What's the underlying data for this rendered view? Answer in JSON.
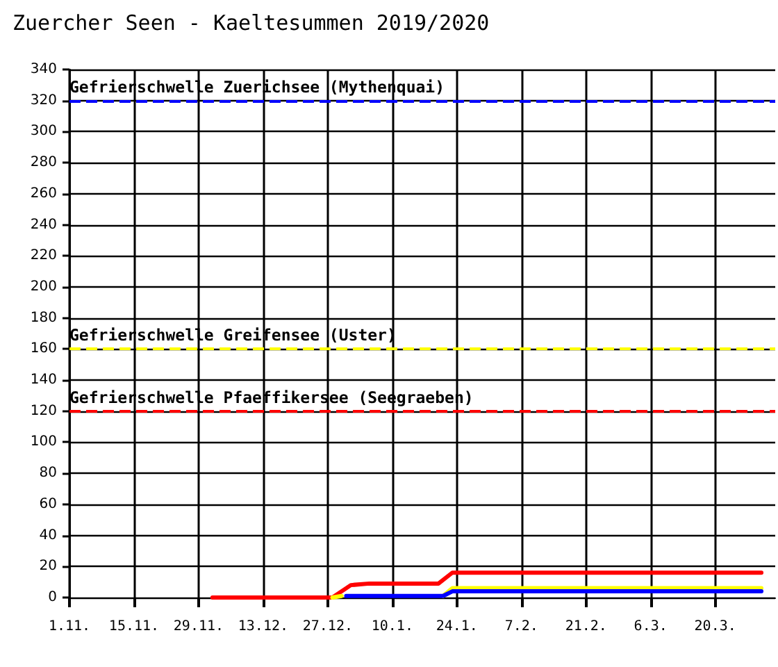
{
  "chart_data": {
    "type": "line",
    "title": "Zuercher Seen - Kaeltesummen 2019/2020",
    "xlim": [
      "2019-11-01",
      "2020-04-02"
    ],
    "xticks": [
      {
        "value": "2019-11-01",
        "label": "1.11."
      },
      {
        "value": "2019-11-15",
        "label": "15.11."
      },
      {
        "value": "2019-11-29",
        "label": "29.11."
      },
      {
        "value": "2019-12-13",
        "label": "13.12."
      },
      {
        "value": "2019-12-27",
        "label": "27.12."
      },
      {
        "value": "2020-01-10",
        "label": "10.1."
      },
      {
        "value": "2020-01-24",
        "label": "24.1."
      },
      {
        "value": "2020-02-07",
        "label": "7.2."
      },
      {
        "value": "2020-02-21",
        "label": "21.2."
      },
      {
        "value": "2020-03-06",
        "label": "6.3."
      },
      {
        "value": "2020-03-20",
        "label": "20.3."
      }
    ],
    "ylim": [
      0,
      340
    ],
    "yticks": [
      0,
      20,
      40,
      60,
      80,
      100,
      120,
      140,
      160,
      180,
      200,
      220,
      240,
      260,
      280,
      300,
      320,
      340
    ],
    "grid": true,
    "marker": "none",
    "line_style": "solid",
    "series": [
      {
        "color": "#ff0000",
        "x": [
          "2019-12-02",
          "2019-12-28",
          "2020-01-01",
          "2020-01-05",
          "2020-01-20",
          "2020-01-23",
          "2020-03-30"
        ],
        "values": [
          0,
          0,
          8,
          9,
          9,
          16,
          16
        ]
      },
      {
        "color": "#ffff00",
        "x": [
          "2019-12-28",
          "2019-12-30",
          "2020-01-10",
          "2020-01-21",
          "2020-01-23",
          "2020-03-30"
        ],
        "values": [
          0,
          1,
          null,
          1,
          6,
          6
        ]
      },
      {
        "color": "#0000ff",
        "x": [
          "2019-12-31",
          "2020-01-21",
          "2020-01-23",
          "2020-03-30"
        ],
        "values": [
          1,
          1,
          4,
          4
        ]
      }
    ],
    "ref_lines": [
      {
        "axis": "y",
        "value": 320,
        "label": "Gefrierschwelle Zuerichsee (Mythenquai)",
        "color": "#0000ff",
        "line_style": "dashed"
      },
      {
        "axis": "y",
        "value": 160,
        "label": "Gefrierschwelle Greifensee (Uster)",
        "color": "#ffff00",
        "line_style": "dashed"
      },
      {
        "axis": "y",
        "value": 120,
        "label": "Gefrierschwelle Pfaeffikersee (Seegraeben)",
        "color": "#ff0000",
        "line_style": "dashed"
      }
    ]
  }
}
